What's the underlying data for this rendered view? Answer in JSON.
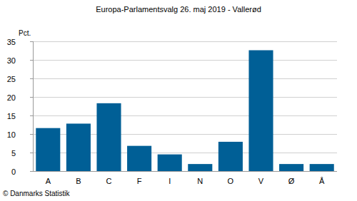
{
  "chart_data": {
    "type": "bar",
    "title": "Europa-Parlamentsvalg 26. maj 2019 - Vallerød",
    "y_label": "Pct.",
    "source": "© Danmarks Statistik",
    "categories": [
      "A",
      "B",
      "C",
      "F",
      "I",
      "N",
      "O",
      "V",
      "Ø",
      "Å"
    ],
    "values": [
      11.6,
      12.8,
      18.3,
      6.8,
      4.5,
      1.9,
      7.9,
      32.6,
      1.9,
      1.9
    ],
    "color": "#005f96",
    "ylim": [
      0,
      35
    ],
    "yticks": [
      0,
      5,
      10,
      15,
      20,
      25,
      30,
      35
    ],
    "grid": true
  }
}
